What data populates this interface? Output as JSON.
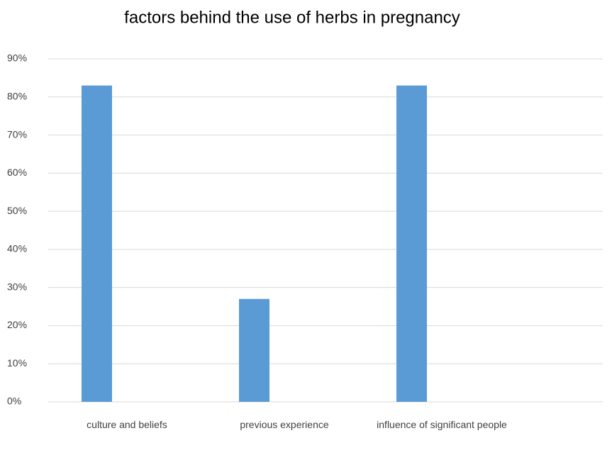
{
  "chart_data": {
    "type": "bar",
    "title": "factors behind the use of herbs in pregnancy",
    "categories": [
      "culture and beliefs",
      "previous experience",
      "influence of significant people"
    ],
    "values": [
      83,
      27,
      83
    ],
    "color": "#5b9bd5",
    "ylim": [
      0,
      90
    ],
    "yticks": [
      {
        "value": 0,
        "label": "0%"
      },
      {
        "value": 10,
        "label": "10%"
      },
      {
        "value": 20,
        "label": "20%"
      },
      {
        "value": 30,
        "label": "30%"
      },
      {
        "value": 40,
        "label": "40%"
      },
      {
        "value": 50,
        "label": "50%"
      },
      {
        "value": 60,
        "label": "60%"
      },
      {
        "value": 70,
        "label": "70%"
      },
      {
        "value": 80,
        "label": "80%"
      },
      {
        "value": 90,
        "label": "90%"
      }
    ],
    "grid": true
  }
}
